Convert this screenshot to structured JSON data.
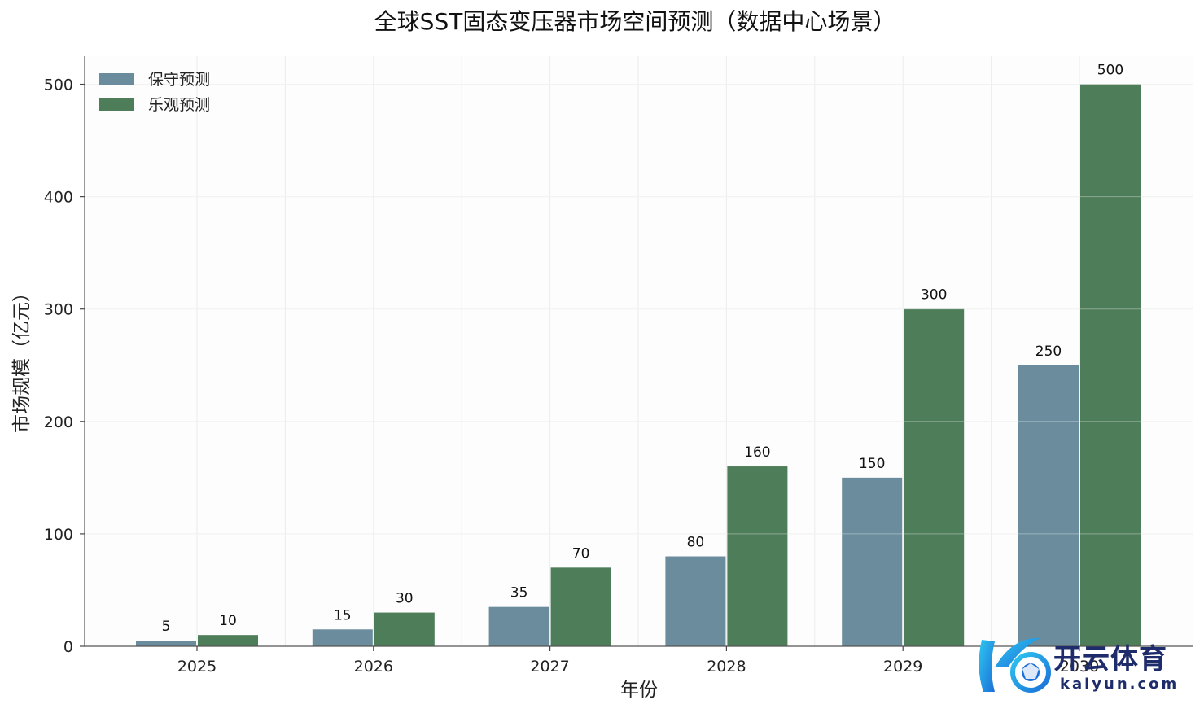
{
  "chart_data": {
    "type": "bar",
    "title": "全球SST固态变压器市场空间预测（数据中心场景）",
    "xlabel": "年份",
    "ylabel": "市场规模（亿元）",
    "categories": [
      "2025",
      "2026",
      "2027",
      "2028",
      "2029",
      "2030"
    ],
    "series": [
      {
        "name": "保守预测",
        "values": [
          5,
          15,
          35,
          80,
          150,
          250
        ],
        "color": "#6a8c9c"
      },
      {
        "name": "乐观预测",
        "values": [
          10,
          30,
          70,
          160,
          300,
          500
        ],
        "color": "#4e7d5a"
      }
    ],
    "ylim": [
      0,
      525
    ],
    "yticks": [
      0,
      100,
      200,
      300,
      400,
      500
    ],
    "grid": true,
    "legend_position": "top-left"
  },
  "watermark": {
    "brand_cn": "开云体育",
    "brand_en": "kaiyun.com",
    "icon": "kaiyun-logo-icon"
  }
}
